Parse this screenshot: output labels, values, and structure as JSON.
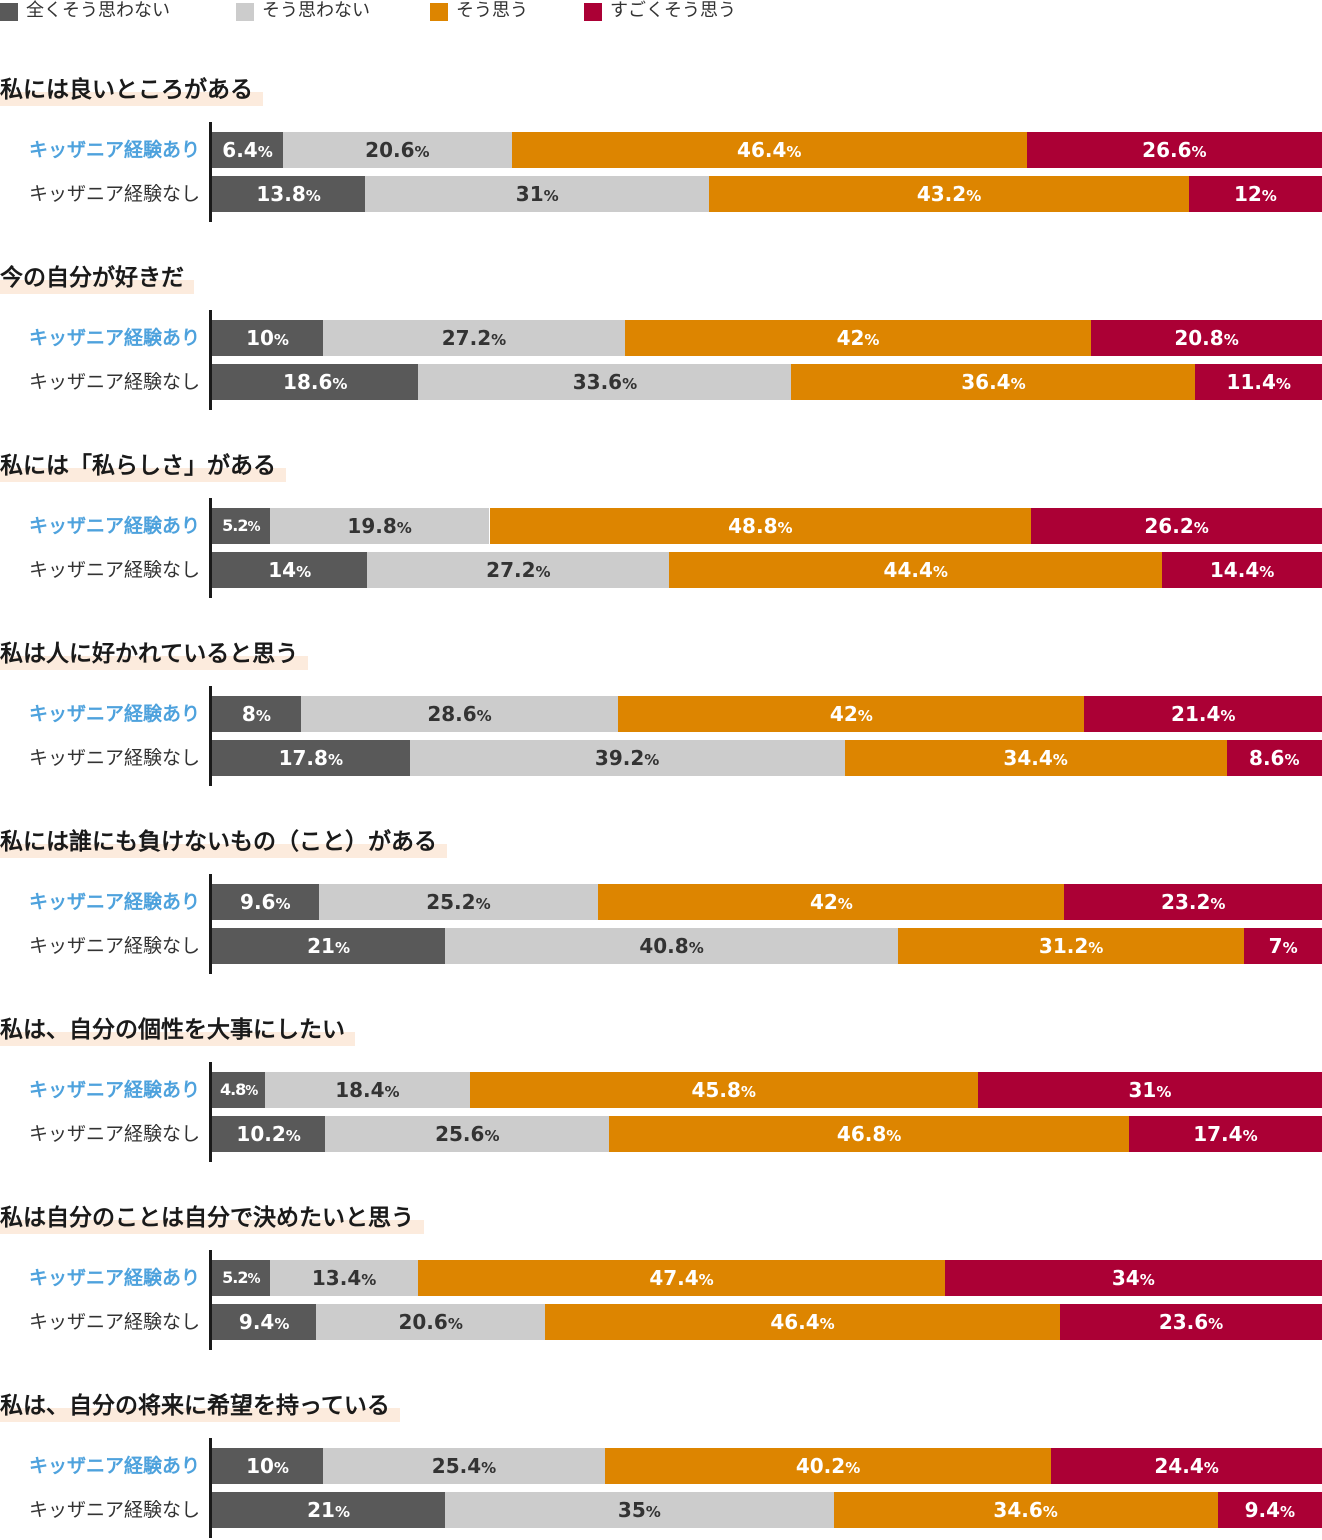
{
  "legend": [
    {
      "label": "全くそう思わない",
      "color": "#595959"
    },
    {
      "label": "そう思わない",
      "color": "#cccccc"
    },
    {
      "label": "そう思う",
      "color": "#dd8500"
    },
    {
      "label": "すごくそう思う",
      "color": "#ab0035"
    }
  ],
  "chart_data": {
    "type": "bar",
    "orientation": "horizontal-stacked-100",
    "xlim": [
      0,
      100
    ],
    "unit": "%",
    "segment_labels": [
      "全くそう思わない",
      "そう思わない",
      "そう思う",
      "すごくそう思う"
    ],
    "segment_colors": [
      "#595959",
      "#cccccc",
      "#dd8500",
      "#ab0035"
    ],
    "label_text_colors": [
      "#ffffff",
      "#333333",
      "#ffffff",
      "#ffffff"
    ],
    "row_labels": [
      "キッザニア経験あり",
      "キッザニア経験なし"
    ],
    "questions": [
      {
        "title": "私には良いところがある",
        "rows": [
          {
            "label": "キッザニア経験あり",
            "values": [
              6.4,
              20.6,
              46.4,
              26.6
            ]
          },
          {
            "label": "キッザニア経験なし",
            "values": [
              13.8,
              31,
              43.2,
              12
            ]
          }
        ]
      },
      {
        "title": "今の自分が好きだ",
        "rows": [
          {
            "label": "キッザニア経験あり",
            "values": [
              10,
              27.2,
              42,
              20.8
            ]
          },
          {
            "label": "キッザニア経験なし",
            "values": [
              18.6,
              33.6,
              36.4,
              11.4
            ]
          }
        ]
      },
      {
        "title": "私には「私らしさ」がある",
        "rows": [
          {
            "label": "キッザニア経験あり",
            "values": [
              5.2,
              19.8,
              48.8,
              26.2
            ]
          },
          {
            "label": "キッザニア経験なし",
            "values": [
              14,
              27.2,
              44.4,
              14.4
            ]
          }
        ]
      },
      {
        "title": "私は人に好かれていると思う",
        "rows": [
          {
            "label": "キッザニア経験あり",
            "values": [
              8,
              28.6,
              42,
              21.4
            ]
          },
          {
            "label": "キッザニア経験なし",
            "values": [
              17.8,
              39.2,
              34.4,
              8.6
            ]
          }
        ]
      },
      {
        "title": "私には誰にも負けないもの（こと）がある",
        "rows": [
          {
            "label": "キッザニア経験あり",
            "values": [
              9.6,
              25.2,
              42,
              23.2
            ]
          },
          {
            "label": "キッザニア経験なし",
            "values": [
              21,
              40.8,
              31.2,
              7
            ]
          }
        ]
      },
      {
        "title": "私は、自分の個性を大事にしたい",
        "rows": [
          {
            "label": "キッザニア経験あり",
            "values": [
              4.8,
              18.4,
              45.8,
              31
            ]
          },
          {
            "label": "キッザニア経験なし",
            "values": [
              10.2,
              25.6,
              46.8,
              17.4
            ]
          }
        ]
      },
      {
        "title": "私は自分のことは自分で決めたいと思う",
        "rows": [
          {
            "label": "キッザニア経験あり",
            "values": [
              5.2,
              13.4,
              47.4,
              34
            ]
          },
          {
            "label": "キッザニア経験なし",
            "values": [
              9.4,
              20.6,
              46.4,
              23.6
            ]
          }
        ]
      },
      {
        "title": "私は、自分の将来に希望を持っている",
        "rows": [
          {
            "label": "キッザニア経験あり",
            "values": [
              10,
              25.4,
              40.2,
              24.4
            ]
          },
          {
            "label": "キッザニア経験なし",
            "values": [
              21,
              35,
              34.6,
              9.4
            ]
          }
        ]
      }
    ]
  }
}
